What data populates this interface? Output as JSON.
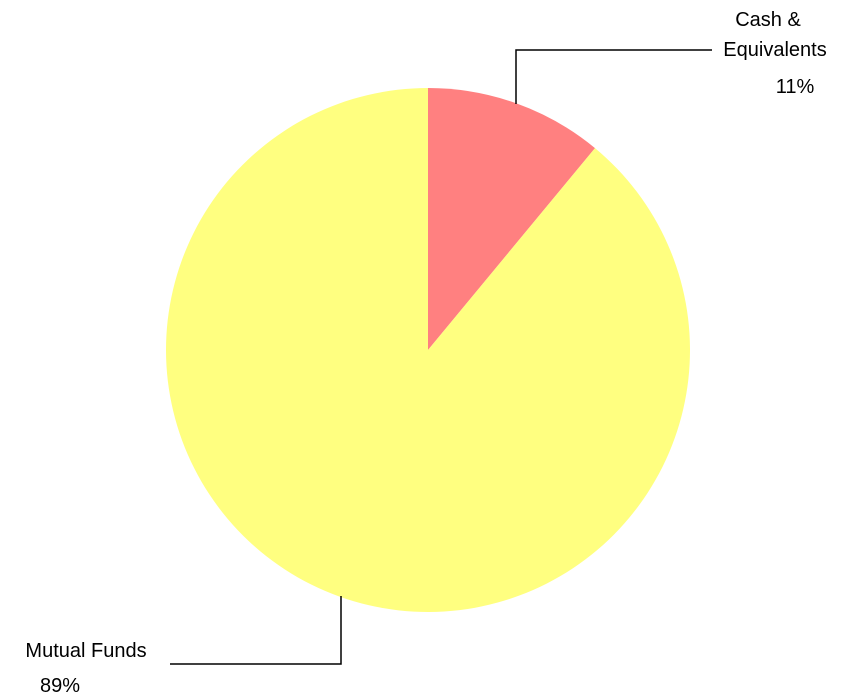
{
  "chart_data": {
    "type": "pie",
    "slices": [
      {
        "label_lines": [
          "Cash &",
          "Equivalents"
        ],
        "value": 11,
        "value_label": "11%",
        "color": "#ff8080"
      },
      {
        "label_lines": [
          "Mutual Funds"
        ],
        "value": 89,
        "value_label": "89%",
        "color": "#ffff80"
      }
    ],
    "start_angle_deg": 0,
    "direction": "clockwise",
    "legend": "none"
  }
}
